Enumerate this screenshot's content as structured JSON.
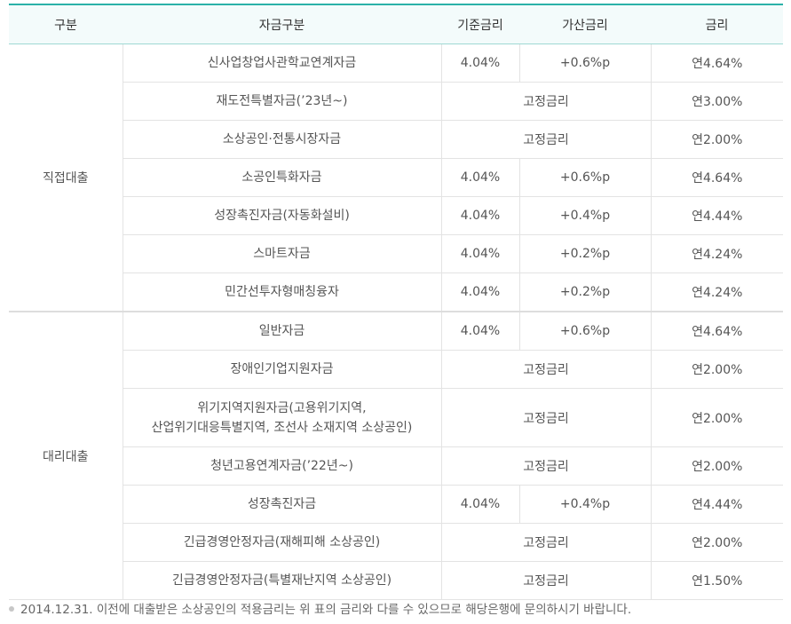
{
  "header": {
    "col_group": "구분",
    "col_fund": "자금구분",
    "col_base": "기준금리",
    "col_add": "가산금리",
    "col_rate": "금리"
  },
  "sections": [
    {
      "name": "직접대출",
      "rows": [
        {
          "fund": "신사업창업사관학교연계자금",
          "base": "4.04%",
          "add": "+0.6%p",
          "rate": "연4.64%"
        },
        {
          "fund": "재도전특별자금(’23년~)",
          "fixed": "고정금리",
          "rate": "연3.00%"
        },
        {
          "fund": "소상공인·전통시장자금",
          "fixed": "고정금리",
          "rate": "연2.00%"
        },
        {
          "fund": "소공인특화자금",
          "base": "4.04%",
          "add": "+0.6%p",
          "rate": "연4.64%"
        },
        {
          "fund": "성장촉진자금(자동화설비)",
          "base": "4.04%",
          "add": "+0.4%p",
          "rate": "연4.44%"
        },
        {
          "fund": "스마트자금",
          "base": "4.04%",
          "add": "+0.2%p",
          "rate": "연4.24%"
        },
        {
          "fund": "민간선투자형매칭융자",
          "base": "4.04%",
          "add": "+0.2%p",
          "rate": "연4.24%"
        }
      ]
    },
    {
      "name": "대리대출",
      "rows": [
        {
          "fund": "일반자금",
          "base": "4.04%",
          "add": "+0.6%p",
          "rate": "연4.64%"
        },
        {
          "fund": "장애인기업지원자금",
          "fixed": "고정금리",
          "rate": "연2.00%"
        },
        {
          "fund_line1": "위기지역지원자금(고용위기지역,",
          "fund_line2": "산업위기대응특별지역, 조선사 소재지역 소상공인)",
          "fixed": "고정금리",
          "rate": "연2.00%"
        },
        {
          "fund": "청년고용연계자금(’22년~)",
          "fixed": "고정금리",
          "rate": "연2.00%"
        },
        {
          "fund": "성장촉진자금",
          "base": "4.04%",
          "add": "+0.4%p",
          "rate": "연4.44%"
        },
        {
          "fund": "긴급경영안정자금(재해피해 소상공인)",
          "fixed": "고정금리",
          "rate": "연2.00%"
        },
        {
          "fund": "긴급경영안정자금(특별재난지역 소상공인)",
          "fixed": "고정금리",
          "rate": "연1.50%"
        }
      ]
    }
  ],
  "note": "2014.12.31. 이전에 대출받은 소상공인의 적용금리는 위 표의 금리와 다를 수 있으므로 해당은행에 문의하시기 바랍니다.",
  "colors": {
    "accent": "#2ab1a8",
    "header_bg": "#f3fbfb"
  }
}
